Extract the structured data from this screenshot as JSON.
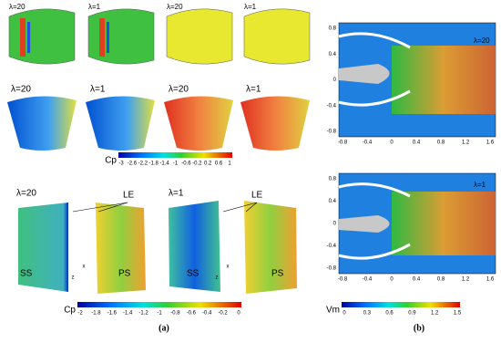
{
  "panel_a": {
    "row1_labels": [
      "λ=20",
      "λ=1",
      "λ=20",
      "λ=1"
    ],
    "row2_labels": [
      "λ=20",
      "λ=1",
      "λ=20",
      "λ=1"
    ],
    "colorbar1": {
      "symbol": "Cp",
      "ticks": [
        "-3",
        "-2.6",
        "-2.2",
        "-1.8",
        "-1.4",
        "-1",
        "-0.6",
        "-0.2",
        "0.2",
        "0.6",
        "1"
      ]
    },
    "row3": {
      "labels": [
        "λ=20",
        "λ=1"
      ],
      "le": [
        "LE",
        "LE"
      ],
      "ss": [
        "SS",
        "SS"
      ],
      "ps": [
        "PS",
        "PS"
      ],
      "axis_x": "x",
      "axis_z": "z"
    },
    "colorbar2": {
      "symbol": "Cp",
      "ticks": [
        "-2",
        "-1.8",
        "-1.6",
        "-1.4",
        "-1.2",
        "-1",
        "-0.8",
        "-0.6",
        "-0.4",
        "-0.2",
        "0"
      ]
    },
    "caption": "(a)"
  },
  "panel_b": {
    "labels": [
      "λ=20",
      "λ=1"
    ],
    "yticks": [
      "0.8",
      "0.4",
      "0",
      "-0.4",
      "-0.8"
    ],
    "xticks": [
      "-0.8",
      "-0.4",
      "0",
      "0.4",
      "0.8",
      "1.2",
      "1.6"
    ],
    "colorbar": {
      "symbol": "Vm",
      "ticks": [
        "0",
        "0.3",
        "0.6",
        "0.9",
        "1.2",
        "1.5"
      ]
    },
    "caption": "(b)"
  }
}
